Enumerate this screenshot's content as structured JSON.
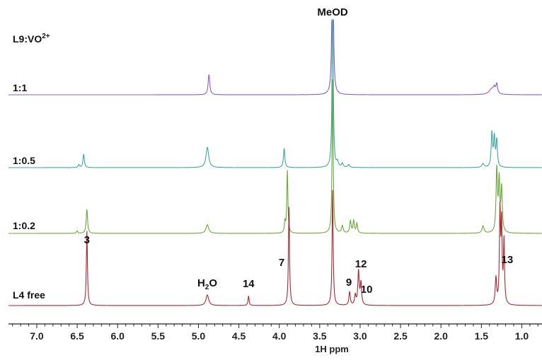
{
  "chart_data": {
    "type": "line",
    "title": "",
    "xlabel": "1H ppm",
    "ylabel": "",
    "x_reversed": true,
    "xlim": [
      7.35,
      0.75
    ],
    "x_ticks": [
      {
        "value": 7.0,
        "label": "7.0"
      },
      {
        "value": 6.5,
        "label": "6.5"
      },
      {
        "value": 6.0,
        "label": "6.0"
      },
      {
        "value": 5.5,
        "label": "5.5"
      },
      {
        "value": 5.0,
        "label": "5.0"
      },
      {
        "value": 4.5,
        "label": "4.5"
      },
      {
        "value": 4.0,
        "label": "4.0"
      },
      {
        "value": 3.5,
        "label": "3.5"
      },
      {
        "value": 3.0,
        "label": "3.0"
      },
      {
        "value": 2.5,
        "label": "2.5"
      },
      {
        "value": 2.0,
        "label": "2.0"
      },
      {
        "value": 1.5,
        "label": "1.5"
      },
      {
        "value": 1.0,
        "label": "1.0"
      }
    ],
    "grid": false,
    "legend_title": "L9:VO2+",
    "legend_title_parts": {
      "base": "L9:VO",
      "sup": "2+"
    },
    "series": [
      {
        "name": "1:1",
        "color": "#8a5cc9",
        "peaks": [
          {
            "ppm": 4.87,
            "height": 0.42,
            "width": 0.012
          },
          {
            "ppm": 3.34,
            "height": 5.0,
            "width": 0.008
          },
          {
            "ppm": 1.37,
            "height": 0.12,
            "width": 0.04
          },
          {
            "ppm": 1.31,
            "height": 0.2,
            "width": 0.012
          },
          {
            "ppm": 1.34,
            "height": 0.1,
            "width": 0.012
          }
        ]
      },
      {
        "name": "1:0.5",
        "color": "#3aa8a0",
        "peaks": [
          {
            "ppm": 6.42,
            "height": 0.28,
            "width": 0.01
          },
          {
            "ppm": 6.48,
            "height": 0.06,
            "width": 0.01
          },
          {
            "ppm": 4.89,
            "height": 0.42,
            "width": 0.02
          },
          {
            "ppm": 3.94,
            "height": 0.4,
            "width": 0.01
          },
          {
            "ppm": 3.34,
            "height": 4.0,
            "width": 0.008
          },
          {
            "ppm": 3.28,
            "height": 0.1,
            "width": 0.012
          },
          {
            "ppm": 3.22,
            "height": 0.08,
            "width": 0.012
          },
          {
            "ppm": 3.14,
            "height": 0.06,
            "width": 0.012
          },
          {
            "ppm": 1.37,
            "height": 0.7,
            "width": 0.01
          },
          {
            "ppm": 1.34,
            "height": 0.6,
            "width": 0.01
          },
          {
            "ppm": 1.31,
            "height": 0.55,
            "width": 0.01
          },
          {
            "ppm": 1.48,
            "height": 0.08,
            "width": 0.015
          }
        ]
      },
      {
        "name": "1:0.2",
        "color": "#6aa83a",
        "peaks": [
          {
            "ppm": 6.38,
            "height": 0.5,
            "width": 0.01
          },
          {
            "ppm": 6.5,
            "height": 0.05,
            "width": 0.01
          },
          {
            "ppm": 4.89,
            "height": 0.18,
            "width": 0.02
          },
          {
            "ppm": 3.9,
            "height": 1.3,
            "width": 0.008
          },
          {
            "ppm": 3.93,
            "height": 0.22,
            "width": 0.008
          },
          {
            "ppm": 3.34,
            "height": 3.2,
            "width": 0.008
          },
          {
            "ppm": 3.22,
            "height": 0.15,
            "width": 0.012
          },
          {
            "ppm": 3.12,
            "height": 0.25,
            "width": 0.01
          },
          {
            "ppm": 3.08,
            "height": 0.25,
            "width": 0.01
          },
          {
            "ppm": 3.04,
            "height": 0.2,
            "width": 0.01
          },
          {
            "ppm": 1.31,
            "height": 1.3,
            "width": 0.01
          },
          {
            "ppm": 1.28,
            "height": 1.05,
            "width": 0.01
          },
          {
            "ppm": 1.25,
            "height": 0.9,
            "width": 0.01
          },
          {
            "ppm": 1.48,
            "height": 0.15,
            "width": 0.015
          }
        ]
      },
      {
        "name": "L4 free",
        "color": "#a8282e",
        "peaks": [
          {
            "ppm": 6.38,
            "height": 1.55,
            "width": 0.008
          },
          {
            "ppm": 4.89,
            "height": 0.22,
            "width": 0.02
          },
          {
            "ppm": 4.38,
            "height": 0.2,
            "width": 0.008
          },
          {
            "ppm": 3.88,
            "height": 2.05,
            "width": 0.008
          },
          {
            "ppm": 3.34,
            "height": 2.4,
            "width": 0.008
          },
          {
            "ppm": 3.13,
            "height": 0.28,
            "width": 0.01
          },
          {
            "ppm": 3.02,
            "height": 0.7,
            "width": 0.01
          },
          {
            "ppm": 2.99,
            "height": 0.45,
            "width": 0.01
          },
          {
            "ppm": 3.06,
            "height": 0.2,
            "width": 0.01
          },
          {
            "ppm": 1.32,
            "height": 0.55,
            "width": 0.01
          },
          {
            "ppm": 1.27,
            "height": 1.9,
            "width": 0.008
          },
          {
            "ppm": 1.25,
            "height": 1.6,
            "width": 0.008
          },
          {
            "ppm": 1.22,
            "height": 1.3,
            "width": 0.008
          }
        ]
      }
    ],
    "annotations": [
      {
        "text": "MeOD",
        "ppm": 3.34,
        "row": "top"
      },
      {
        "text": "3",
        "ppm": 6.38,
        "row": "L4 free"
      },
      {
        "text": "H2O",
        "parts": {
          "base": "H",
          "sub": "2",
          "tail": "O"
        },
        "ppm": 4.89,
        "row": "L4 free"
      },
      {
        "text": "14",
        "ppm": 4.38,
        "row": "L4 free"
      },
      {
        "text": "7",
        "ppm": 3.97,
        "row": "L4 free"
      },
      {
        "text": "9",
        "ppm": 3.14,
        "row": "L4 free"
      },
      {
        "text": "12",
        "ppm": 2.99,
        "row": "L4 free"
      },
      {
        "text": "10",
        "ppm": 2.92,
        "row": "L4 free"
      },
      {
        "text": "13",
        "ppm": 1.18,
        "row": "L4 free"
      }
    ]
  }
}
